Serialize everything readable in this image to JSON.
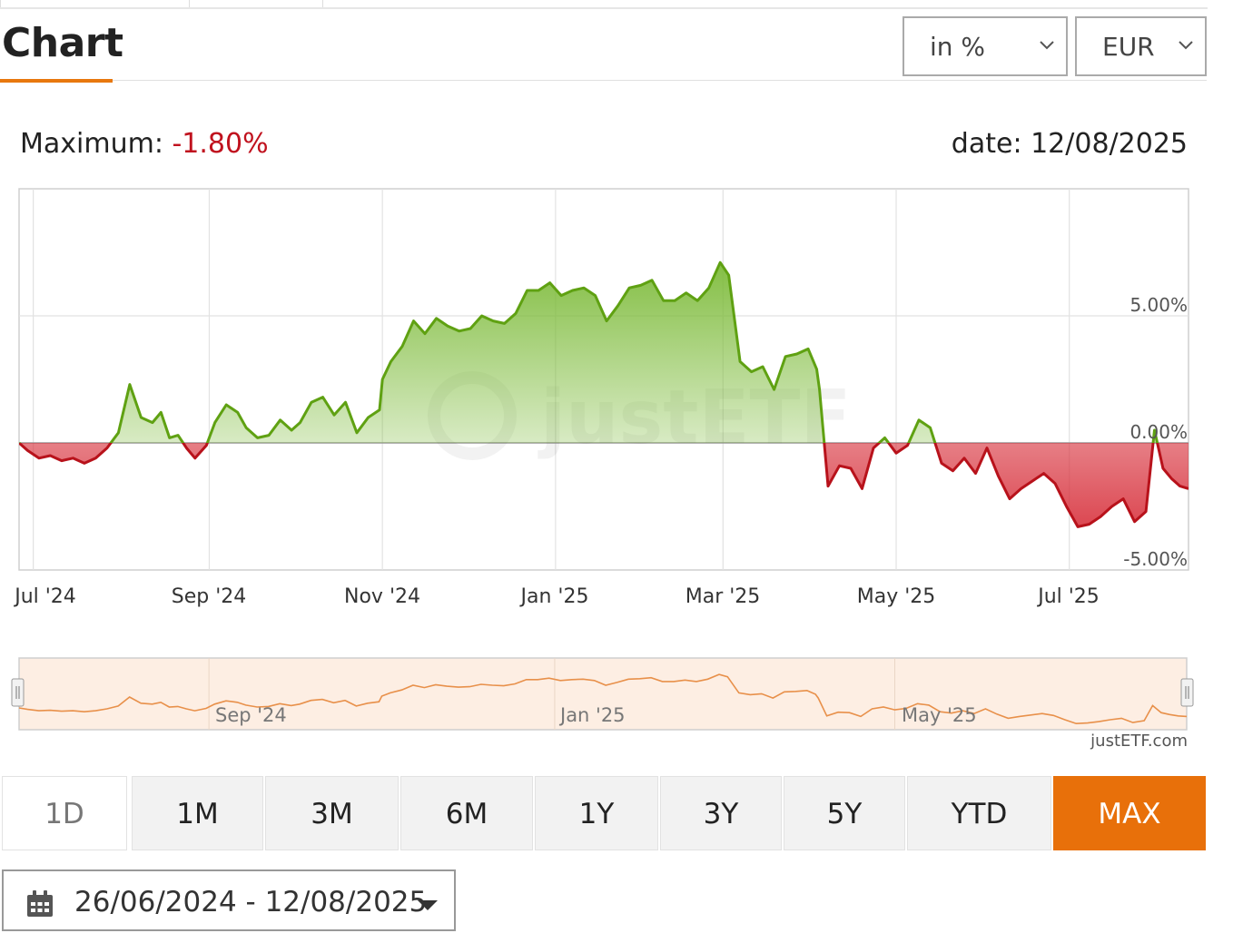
{
  "header": {
    "title": "Chart",
    "unit_select": "in %",
    "currency_select": "EUR"
  },
  "summary": {
    "maximum_label": "Maximum:",
    "maximum_value": "-1.80%",
    "date_label": "date: 12/08/2025"
  },
  "chart_data": {
    "type": "area",
    "title": "",
    "xlabel": "",
    "ylabel": "",
    "x_tick_labels": [
      "Jul '24",
      "Sep '24",
      "Nov '24",
      "Jan '25",
      "Mar '25",
      "May '25",
      "Jul '25"
    ],
    "y_tick_labels": [
      "5.00%",
      "0.00%",
      "-5.00%"
    ],
    "ylim": [
      -5,
      10
    ],
    "x_range": [
      "2024-06-26",
      "2025-08-12"
    ],
    "grid": true,
    "watermark": "justETF",
    "colors": {
      "positive": "#5fa112",
      "negative": "#b8121b",
      "positive_fill": "#7dbb3a",
      "negative_fill": "#d8333e"
    },
    "series": [
      {
        "x": [
          "2024-06-26",
          "2024-06-29",
          "2024-07-03",
          "2024-07-07",
          "2024-07-11",
          "2024-07-15",
          "2024-07-19",
          "2024-07-23",
          "2024-07-27",
          "2024-07-31",
          "2024-08-04",
          "2024-08-08",
          "2024-08-12",
          "2024-08-15",
          "2024-08-18",
          "2024-08-21",
          "2024-08-24",
          "2024-08-27",
          "2024-08-31",
          "2024-09-03",
          "2024-09-07",
          "2024-09-11",
          "2024-09-14",
          "2024-09-18",
          "2024-09-22",
          "2024-09-26",
          "2024-09-30",
          "2024-10-03",
          "2024-10-07",
          "2024-10-11",
          "2024-10-15",
          "2024-10-19",
          "2024-10-23",
          "2024-10-27",
          "2024-10-31",
          "2024-11-01",
          "2024-11-04",
          "2024-11-08",
          "2024-11-12",
          "2024-11-16",
          "2024-11-20",
          "2024-11-24",
          "2024-11-28",
          "2024-12-02",
          "2024-12-06",
          "2024-12-10",
          "2024-12-14",
          "2024-12-18",
          "2024-12-22",
          "2024-12-26",
          "2024-12-30",
          "2025-01-03",
          "2025-01-07",
          "2025-01-11",
          "2025-01-15",
          "2025-01-19",
          "2025-01-23",
          "2025-01-27",
          "2025-01-31",
          "2025-02-04",
          "2025-02-08",
          "2025-02-12",
          "2025-02-16",
          "2025-02-20",
          "2025-02-24",
          "2025-02-28",
          "2025-03-03",
          "2025-03-07",
          "2025-03-11",
          "2025-03-15",
          "2025-03-19",
          "2025-03-23",
          "2025-03-27",
          "2025-03-31",
          "2025-04-03",
          "2025-04-04",
          "2025-04-07",
          "2025-04-11",
          "2025-04-15",
          "2025-04-19",
          "2025-04-23",
          "2025-04-27",
          "2025-05-01",
          "2025-05-05",
          "2025-05-09",
          "2025-05-13",
          "2025-05-17",
          "2025-05-21",
          "2025-05-25",
          "2025-05-29",
          "2025-06-02",
          "2025-06-06",
          "2025-06-10",
          "2025-06-14",
          "2025-06-18",
          "2025-06-22",
          "2025-06-26",
          "2025-06-30",
          "2025-07-04",
          "2025-07-08",
          "2025-07-12",
          "2025-07-16",
          "2025-07-20",
          "2025-07-24",
          "2025-07-28",
          "2025-07-31",
          "2025-08-03",
          "2025-08-06",
          "2025-08-09",
          "2025-08-12"
        ],
        "y": [
          0.0,
          -0.3,
          -0.6,
          -0.5,
          -0.7,
          -0.6,
          -0.8,
          -0.6,
          -0.2,
          0.4,
          2.3,
          1.0,
          0.8,
          1.2,
          0.2,
          0.3,
          -0.2,
          -0.6,
          -0.1,
          0.8,
          1.5,
          1.2,
          0.6,
          0.2,
          0.3,
          0.9,
          0.5,
          0.8,
          1.6,
          1.8,
          1.1,
          1.6,
          0.4,
          1.0,
          1.3,
          2.5,
          3.2,
          3.8,
          4.8,
          4.3,
          4.9,
          4.6,
          4.4,
          4.5,
          5.0,
          4.8,
          4.7,
          5.1,
          6.0,
          6.0,
          6.3,
          5.8,
          6.0,
          6.1,
          5.8,
          4.8,
          5.4,
          6.1,
          6.2,
          6.4,
          5.6,
          5.6,
          5.9,
          5.6,
          6.1,
          7.1,
          6.6,
          3.2,
          2.8,
          3.0,
          2.1,
          3.4,
          3.5,
          3.7,
          2.9,
          2.1,
          -1.7,
          -0.9,
          -1.0,
          -1.8,
          -0.2,
          0.2,
          -0.4,
          -0.1,
          0.9,
          0.6,
          -0.8,
          -1.1,
          -0.6,
          -1.2,
          -0.2,
          -1.3,
          -2.2,
          -1.8,
          -1.5,
          -1.2,
          -1.6,
          -2.5,
          -3.3,
          -3.2,
          -2.9,
          -2.5,
          -2.2,
          -3.1,
          -2.7,
          0.5,
          -1.0,
          -1.4,
          -1.7,
          -1.8
        ]
      }
    ]
  },
  "navigator": {
    "labels": [
      "Sep '24",
      "Jan '25",
      "May '25"
    ]
  },
  "credit": "justETF.com",
  "ranges": [
    "1D",
    "1M",
    "3M",
    "6M",
    "1Y",
    "3Y",
    "5Y",
    "YTD",
    "MAX"
  ],
  "active_range": "MAX",
  "date_range": "26/06/2024 - 12/08/2025"
}
